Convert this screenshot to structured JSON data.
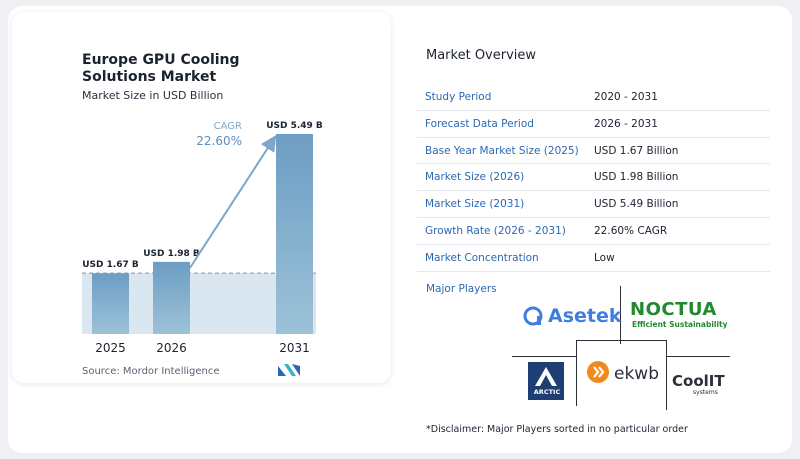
{
  "chart_data": {
    "type": "bar",
    "title": "Europe GPU Cooling Solutions Market",
    "subtitle": "Market Size in USD Billion",
    "categories": [
      "2025",
      "2026",
      "2031"
    ],
    "values": [
      1.67,
      1.98,
      5.49
    ],
    "data_labels": [
      "USD 1.67 B",
      "USD 1.98 B",
      "USD 5.49 B"
    ],
    "ylim": [
      0,
      5.49
    ],
    "cagr_label": "CAGR",
    "cagr_value": "22.60%",
    "colors": {
      "bar_top": "#6d9dc4",
      "bar_bottom": "#9cc2d8",
      "baseline_fill": "#dbe7f0",
      "arrow": "#7fa5c8"
    }
  },
  "source": "Source:  Mordor Intelligence",
  "overview": {
    "title": "Market Overview",
    "rows": [
      {
        "key": "Study Period",
        "value": "2020 - 2031"
      },
      {
        "key": "Forecast Data Period",
        "value": "2026 - 2031"
      },
      {
        "key": "Base Year Market Size (2025)",
        "value": "USD 1.67 Billion"
      },
      {
        "key": "Market Size (2026)",
        "value": "USD 1.98 Billion"
      },
      {
        "key": "Market Size (2031)",
        "value": "USD 5.49 Billion"
      },
      {
        "key": "Growth Rate (2026 - 2031)",
        "value": "22.60% CAGR"
      },
      {
        "key": "Market Concentration",
        "value": "Low"
      }
    ]
  },
  "players": {
    "title": "Major Players",
    "logos": [
      "Asetek",
      "NOCTUA",
      "ARCTIC",
      "ekwb",
      "CoolIT"
    ],
    "noctua_tagline": "Efficient Sustainability",
    "coolit_tagline": "systems"
  },
  "disclaimer": "*Disclaimer: Major Players sorted in no particular order"
}
